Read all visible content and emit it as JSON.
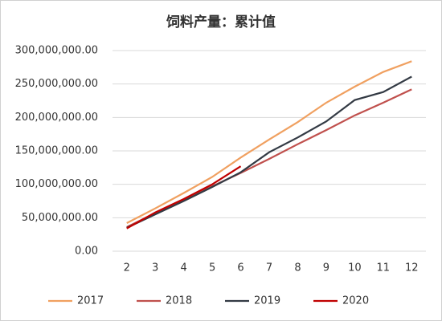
{
  "chart_data": {
    "type": "line",
    "title": "饲料产量：累计值",
    "categories": [
      2,
      3,
      4,
      5,
      6,
      7,
      8,
      9,
      10,
      11,
      12
    ],
    "series": [
      {
        "name": "2017",
        "color": "#f0a060",
        "values": [
          42000000,
          64000000,
          87000000,
          111000000,
          140000000,
          167000000,
          193000000,
          222000000,
          246000000,
          268000000,
          284000000
        ]
      },
      {
        "name": "2018",
        "color": "#c0504d",
        "values": [
          36000000,
          57000000,
          77000000,
          97000000,
          117000000,
          138000000,
          160000000,
          181000000,
          203000000,
          222000000,
          242000000
        ]
      },
      {
        "name": "2019",
        "color": "#333a44",
        "values": [
          35000000,
          55000000,
          75000000,
          96000000,
          118000000,
          148000000,
          170000000,
          194000000,
          226000000,
          238000000,
          261000000
        ]
      },
      {
        "name": "2020",
        "color": "#c00000",
        "values": [
          34000000,
          58000000,
          78000000,
          100000000,
          127000000,
          null,
          null,
          null,
          null,
          null,
          null
        ]
      }
    ],
    "ylim": [
      0,
      300000000
    ],
    "yticks": [
      {
        "value": 0,
        "label": "0.00"
      },
      {
        "value": 50000000,
        "label": "50,000,000.00"
      },
      {
        "value": 100000000,
        "label": "100,000,000.00"
      },
      {
        "value": 150000000,
        "label": "150,000,000.00"
      },
      {
        "value": 200000000,
        "label": "200,000,000.00"
      },
      {
        "value": 250000000,
        "label": "250,000,000.00"
      },
      {
        "value": 300000000,
        "label": "300,000,000.00"
      }
    ],
    "grid": true,
    "legend": "bottom"
  }
}
